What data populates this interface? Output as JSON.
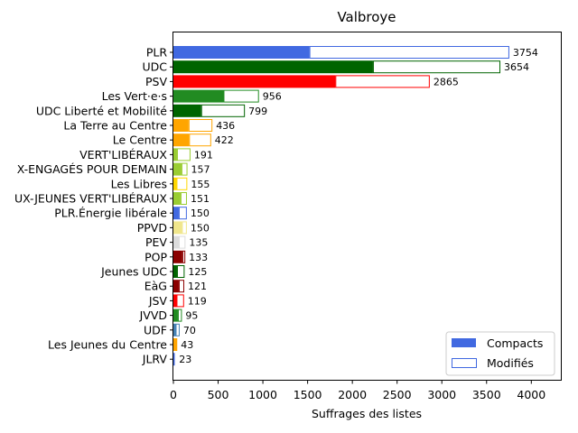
{
  "chart_data": {
    "type": "bar",
    "orientation": "horizontal",
    "stacked": true,
    "title": "Valbroye",
    "xlabel": "Suffrages des listes",
    "ylabel": "",
    "xlim": [
      0,
      4330
    ],
    "xticks": [
      0,
      500,
      1000,
      1500,
      2000,
      2500,
      3000,
      3500,
      4000
    ],
    "grid": false,
    "legend_position": "bottom-right",
    "legend": [
      {
        "label": "Compacts",
        "style": "filled"
      },
      {
        "label": "Modifiés",
        "style": "outline"
      }
    ],
    "categories": [
      {
        "name": "PLR",
        "color": "#4169e1",
        "compact": 1520,
        "modified": 2234,
        "total": 3754
      },
      {
        "name": "UDC",
        "color": "#006400",
        "compact": 2230,
        "modified": 1424,
        "total": 3654
      },
      {
        "name": "PSV",
        "color": "#ff0000",
        "compact": 1810,
        "modified": 1055,
        "total": 2865
      },
      {
        "name": "Les Vert·e·s",
        "color": "#228b22",
        "compact": 560,
        "modified": 396,
        "total": 956
      },
      {
        "name": "UDC Liberté et Mobilité",
        "color": "#006400",
        "compact": 310,
        "modified": 489,
        "total": 799
      },
      {
        "name": "La Terre au Centre",
        "color": "#ffa500",
        "compact": 170,
        "modified": 266,
        "total": 436
      },
      {
        "name": "Le Centre",
        "color": "#ffa500",
        "compact": 175,
        "modified": 247,
        "total": 422
      },
      {
        "name": "VERT'LIBÉRAUX",
        "color": "#9acd32",
        "compact": 40,
        "modified": 151,
        "total": 191
      },
      {
        "name": "X-ENGAGÉS POUR DEMAIN",
        "color": "#9acd32",
        "compact": 90,
        "modified": 67,
        "total": 157
      },
      {
        "name": "Les Libres",
        "color": "#ffd700",
        "compact": 35,
        "modified": 120,
        "total": 155
      },
      {
        "name": "UX-JEUNES VERT'LIBÉRAUX",
        "color": "#9acd32",
        "compact": 80,
        "modified": 71,
        "total": 151
      },
      {
        "name": "PLR.Énergie libérale",
        "color": "#4169e1",
        "compact": 60,
        "modified": 90,
        "total": 150
      },
      {
        "name": "PPVD",
        "color": "#f0e68c",
        "compact": 95,
        "modified": 55,
        "total": 150
      },
      {
        "name": "PEV",
        "color": "#dcdcdc",
        "compact": 60,
        "modified": 75,
        "total": 135
      },
      {
        "name": "POP",
        "color": "#8b0000",
        "compact": 100,
        "modified": 33,
        "total": 133
      },
      {
        "name": "Jeunes UDC",
        "color": "#006400",
        "compact": 40,
        "modified": 85,
        "total": 125
      },
      {
        "name": "EàG",
        "color": "#8b0000",
        "compact": 60,
        "modified": 61,
        "total": 121
      },
      {
        "name": "JSV",
        "color": "#ff0000",
        "compact": 35,
        "modified": 84,
        "total": 119
      },
      {
        "name": "JVVD",
        "color": "#228b22",
        "compact": 50,
        "modified": 45,
        "total": 95
      },
      {
        "name": "UDF",
        "color": "#4682b4",
        "compact": 25,
        "modified": 45,
        "total": 70
      },
      {
        "name": "Les Jeunes du Centre",
        "color": "#ffa500",
        "compact": 25,
        "modified": 18,
        "total": 43
      },
      {
        "name": "JLRV",
        "color": "#4169e1",
        "compact": 15,
        "modified": 8,
        "total": 23
      }
    ]
  }
}
